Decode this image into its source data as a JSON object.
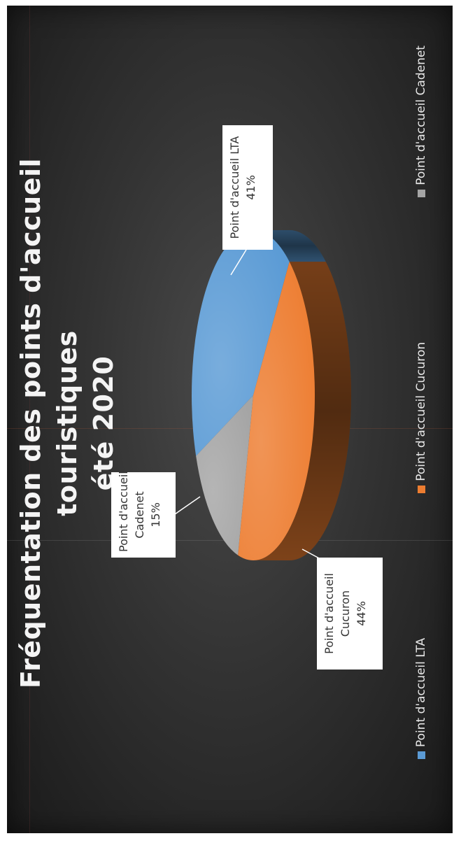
{
  "chart_data": {
    "type": "pie",
    "title_lines": [
      "Fréquentation des points d'accueil",
      "touristiques",
      "été 2020"
    ],
    "series": [
      {
        "values": [
          {
            "label": "Point d'accueil LTA",
            "value": 41,
            "pct_label": "41%",
            "color": "#5b9bd5"
          },
          {
            "label": "Point d'accueil Cucuron",
            "value": 44,
            "pct_label": "44%",
            "color": "#ed7d31"
          },
          {
            "label": "Point d'accueil Cadenet",
            "value": 15,
            "pct_label": "15%",
            "color": "#a5a5a5"
          }
        ]
      }
    ],
    "callouts": {
      "lta": [
        "Point d'accueil LTA",
        "41%"
      ],
      "cucuron": [
        "Point d'accueil",
        "Cucuron",
        "44%"
      ],
      "cadenet": [
        "Point d'accueil",
        "Cadenet",
        "15%"
      ]
    },
    "legend": {
      "placement": "bottom",
      "items": [
        {
          "label": "Point d'accueil LTA",
          "color": "#5b9bd5"
        },
        {
          "label": "Point d'accueil Cucuron",
          "color": "#ed7d31"
        },
        {
          "label": "Point d'accueil Cadenet",
          "color": "#a5a5a5"
        }
      ]
    },
    "style": "3d-pie"
  }
}
